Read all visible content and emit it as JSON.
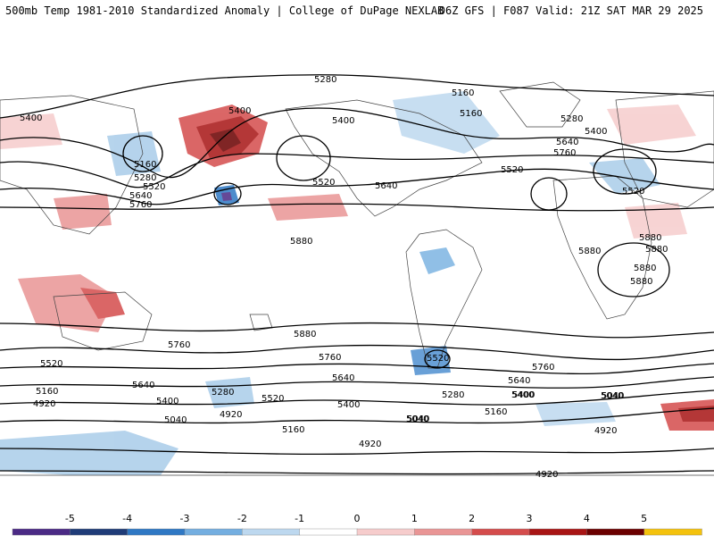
{
  "header": {
    "left": "500mb Temp 1981-2010 Standardized Anomaly | College of DuPage NEXLAB",
    "right": "06Z GFS | F087 Valid: 21Z SAT MAR 29 2025"
  },
  "contour_labels": [
    "5280",
    "5160",
    "5400",
    "5160",
    "5400",
    "5280",
    "5400",
    "5640",
    "5760",
    "5520",
    "5160",
    "5280",
    "5640",
    "5520",
    "5760",
    "5400",
    "5520",
    "5640",
    "5520",
    "5880",
    "5880",
    "5880",
    "5880",
    "5880",
    "5880",
    "5760",
    "5880",
    "5520",
    "5760",
    "5640",
    "5520",
    "5640",
    "5400",
    "5160",
    "5280",
    "5520",
    "4920",
    "5040",
    "5400",
    "4920",
    "5160",
    "5040",
    "5280",
    "5400",
    "5160",
    "5040",
    "4920",
    "5040",
    "4920",
    "5760",
    "5640",
    "5400",
    "5040",
    "4920"
  ],
  "colorbar": {
    "labels": [
      "-5",
      "-4",
      "-3",
      "-2",
      "-1",
      "0",
      "1",
      "2",
      "3",
      "4",
      "5"
    ],
    "colors": [
      "#4b2a85",
      "#1f3c78",
      "#2f78c4",
      "#74aee0",
      "#bdd8ef",
      "#ffffff",
      "#f6cccc",
      "#e99595",
      "#d44c4c",
      "#a81515",
      "#6b0000",
      "#f4c20d"
    ]
  }
}
